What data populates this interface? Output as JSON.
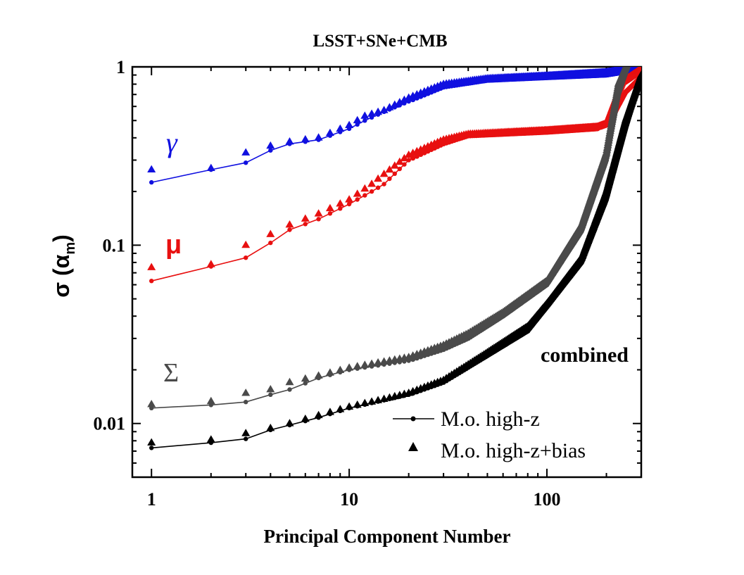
{
  "chart_data": {
    "type": "scatter",
    "title": "LSST+SNe+CMB",
    "xlabel": "Principal Component Number",
    "ylabel": "σ (α",
    "ylabel_sub": "m",
    "ylabel_close": ")",
    "xscale": "log",
    "yscale": "log",
    "xlim": [
      0.8,
      300
    ],
    "ylim": [
      0.005,
      1
    ],
    "x_ticks": [
      {
        "value": 1,
        "label": "1"
      },
      {
        "value": 10,
        "label": "10"
      },
      {
        "value": 100,
        "label": "100"
      }
    ],
    "y_ticks": [
      {
        "value": 0.01,
        "label": "0.01"
      },
      {
        "value": 0.1,
        "label": "0.1"
      },
      {
        "value": 1,
        "label": "1"
      }
    ],
    "annotations": {
      "gamma": "γ",
      "mu": "μ",
      "sigma": "Σ",
      "combined": "combined"
    },
    "legend": {
      "placement": "bottom-right",
      "line_label": "M.o. high-z",
      "triangle_label": "M.o. high-z+bias"
    },
    "series": [
      {
        "name": "γ M.o. high-z",
        "param": "gamma",
        "variant": "line",
        "color": "#1010e0",
        "anchors": [
          [
            1,
            0.225
          ],
          [
            2,
            0.265
          ],
          [
            3,
            0.29
          ],
          [
            4,
            0.34
          ],
          [
            5,
            0.37
          ],
          [
            7,
            0.39
          ],
          [
            10,
            0.45
          ],
          [
            12,
            0.5
          ],
          [
            15,
            0.56
          ],
          [
            20,
            0.64
          ],
          [
            30,
            0.77
          ],
          [
            50,
            0.84
          ],
          [
            100,
            0.87
          ],
          [
            200,
            0.9
          ],
          [
            240,
            0.93
          ],
          [
            300,
            0.97
          ]
        ]
      },
      {
        "name": "γ M.o. high-z+bias",
        "param": "gamma",
        "variant": "bias",
        "color": "#1010e0",
        "anchors": [
          [
            1,
            0.265
          ],
          [
            2,
            0.27
          ],
          [
            3,
            0.33
          ],
          [
            4,
            0.36
          ],
          [
            5,
            0.38
          ],
          [
            7,
            0.4
          ],
          [
            10,
            0.47
          ],
          [
            12,
            0.53
          ],
          [
            15,
            0.57
          ],
          [
            20,
            0.67
          ],
          [
            30,
            0.8
          ],
          [
            50,
            0.86
          ],
          [
            100,
            0.89
          ],
          [
            200,
            0.93
          ],
          [
            240,
            0.96
          ],
          [
            300,
            0.99
          ]
        ]
      },
      {
        "name": "μ M.o. high-z",
        "param": "mu",
        "variant": "line",
        "color": "#e81010",
        "anchors": [
          [
            1,
            0.063
          ],
          [
            2,
            0.076
          ],
          [
            3,
            0.085
          ],
          [
            4,
            0.103
          ],
          [
            5,
            0.122
          ],
          [
            7,
            0.14
          ],
          [
            10,
            0.17
          ],
          [
            13,
            0.2
          ],
          [
            15,
            0.22
          ],
          [
            20,
            0.3
          ],
          [
            30,
            0.37
          ],
          [
            40,
            0.41
          ],
          [
            100,
            0.43
          ],
          [
            180,
            0.45
          ],
          [
            210,
            0.5
          ],
          [
            250,
            0.72
          ],
          [
            300,
            0.88
          ]
        ]
      },
      {
        "name": "μ M.o. high-z+bias",
        "param": "mu",
        "variant": "bias",
        "color": "#e81010",
        "anchors": [
          [
            1,
            0.075
          ],
          [
            2,
            0.078
          ],
          [
            3,
            0.1
          ],
          [
            4,
            0.115
          ],
          [
            5,
            0.13
          ],
          [
            7,
            0.15
          ],
          [
            10,
            0.18
          ],
          [
            13,
            0.22
          ],
          [
            15,
            0.25
          ],
          [
            20,
            0.32
          ],
          [
            30,
            0.39
          ],
          [
            40,
            0.42
          ],
          [
            100,
            0.44
          ],
          [
            180,
            0.46
          ],
          [
            200,
            0.48
          ],
          [
            240,
            0.82
          ],
          [
            300,
            0.97
          ]
        ]
      },
      {
        "name": "Σ M.o. high-z",
        "param": "sigma",
        "variant": "line",
        "color": "#4a4a4a",
        "anchors": [
          [
            1,
            0.0122
          ],
          [
            2,
            0.0127
          ],
          [
            3,
            0.0132
          ],
          [
            4,
            0.0145
          ],
          [
            5,
            0.0155
          ],
          [
            7,
            0.018
          ],
          [
            10,
            0.02
          ],
          [
            20,
            0.0225
          ],
          [
            30,
            0.026
          ],
          [
            40,
            0.03
          ],
          [
            60,
            0.04
          ],
          [
            100,
            0.06
          ],
          [
            150,
            0.12
          ],
          [
            200,
            0.3
          ],
          [
            230,
            0.7
          ],
          [
            260,
            1.05
          ]
        ]
      },
      {
        "name": "Σ M.o. high-z+bias",
        "param": "sigma",
        "variant": "bias",
        "color": "#4a4a4a",
        "anchors": [
          [
            1,
            0.0128
          ],
          [
            2,
            0.0133
          ],
          [
            3,
            0.0148
          ],
          [
            4,
            0.0155
          ],
          [
            5,
            0.017
          ],
          [
            7,
            0.0185
          ],
          [
            10,
            0.0205
          ],
          [
            20,
            0.0235
          ],
          [
            30,
            0.0275
          ],
          [
            40,
            0.032
          ],
          [
            60,
            0.042
          ],
          [
            100,
            0.063
          ],
          [
            150,
            0.13
          ],
          [
            200,
            0.33
          ],
          [
            230,
            0.8
          ],
          [
            260,
            1.1
          ]
        ]
      },
      {
        "name": "combined M.o. high-z",
        "param": "combined",
        "variant": "line",
        "color": "#000000",
        "anchors": [
          [
            1,
            0.0073
          ],
          [
            2,
            0.0078
          ],
          [
            3,
            0.0082
          ],
          [
            4,
            0.0092
          ],
          [
            5,
            0.0098
          ],
          [
            7,
            0.0108
          ],
          [
            10,
            0.0122
          ],
          [
            15,
            0.0135
          ],
          [
            20,
            0.0145
          ],
          [
            30,
            0.017
          ],
          [
            50,
            0.024
          ],
          [
            80,
            0.033
          ],
          [
            100,
            0.045
          ],
          [
            150,
            0.08
          ],
          [
            200,
            0.18
          ],
          [
            250,
            0.45
          ],
          [
            300,
            0.88
          ]
        ]
      },
      {
        "name": "combined M.o. high-z+bias",
        "param": "combined",
        "variant": "bias",
        "color": "#000000",
        "anchors": [
          [
            1,
            0.0078
          ],
          [
            2,
            0.0081
          ],
          [
            3,
            0.0088
          ],
          [
            4,
            0.0094
          ],
          [
            5,
            0.01
          ],
          [
            7,
            0.0111
          ],
          [
            10,
            0.0124
          ],
          [
            15,
            0.0137
          ],
          [
            20,
            0.0148
          ],
          [
            30,
            0.0175
          ],
          [
            50,
            0.025
          ],
          [
            80,
            0.035
          ],
          [
            100,
            0.047
          ],
          [
            150,
            0.085
          ],
          [
            200,
            0.2
          ],
          [
            250,
            0.5
          ],
          [
            300,
            0.9
          ]
        ]
      }
    ]
  }
}
